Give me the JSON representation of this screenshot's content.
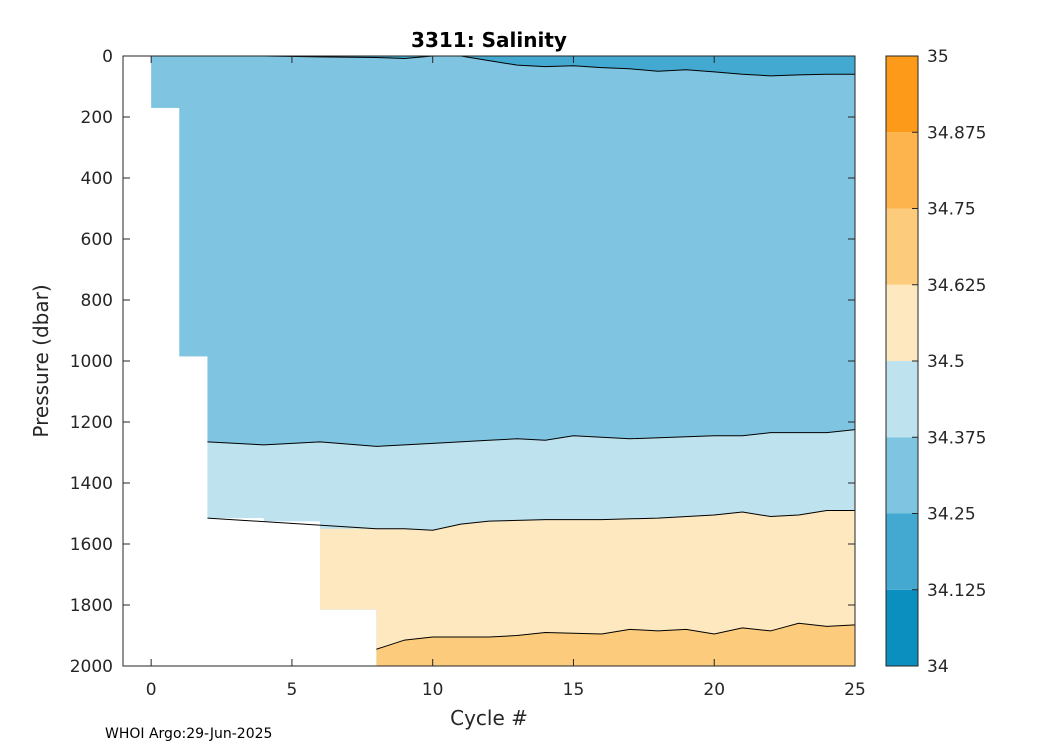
{
  "chart_data": {
    "type": "contour",
    "title": "3311:  Salinity",
    "xlabel": "Cycle #",
    "ylabel": "Pressure (dbar)",
    "xlim": [
      -1,
      25
    ],
    "ylim": [
      2000,
      0
    ],
    "xticks": [
      0,
      5,
      10,
      15,
      20,
      25
    ],
    "yticks": [
      0,
      200,
      400,
      600,
      800,
      1000,
      1200,
      1400,
      1600,
      1800,
      2000
    ],
    "colorbar": {
      "ticks": [
        "34",
        "34.125",
        "34.25",
        "34.375",
        "34.5",
        "34.625",
        "34.75",
        "34.875",
        "35"
      ],
      "colors": [
        "#0b8fbf",
        "#43a9d0",
        "#7fc4e0",
        "#bee2ee",
        "#fde8c0",
        "#fccc7c",
        "#fdb44d",
        "#fe9a19"
      ]
    },
    "profile_max_depth": [
      {
        "cycle": 0,
        "pressure": 170
      },
      {
        "cycle": 1,
        "pressure": 985
      },
      {
        "cycle": 2,
        "pressure": 1515
      },
      {
        "cycle": 4,
        "pressure": 1525
      },
      {
        "cycle": 6,
        "pressure": 1815
      },
      {
        "cycle": 8,
        "pressure": 2000
      },
      {
        "cycle": 25,
        "pressure": 2000
      }
    ],
    "contours": [
      {
        "level": "34.25",
        "points": [
          [
            0,
            0
          ],
          [
            4,
            0
          ],
          [
            6,
            3
          ],
          [
            8,
            5
          ],
          [
            9,
            8
          ],
          [
            10,
            0
          ],
          [
            11,
            0
          ],
          [
            12,
            15
          ],
          [
            13,
            30
          ],
          [
            14,
            35
          ],
          [
            15,
            32
          ],
          [
            16,
            38
          ],
          [
            17,
            42
          ],
          [
            18,
            50
          ],
          [
            19,
            45
          ],
          [
            20,
            52
          ],
          [
            21,
            60
          ],
          [
            22,
            65
          ],
          [
            23,
            62
          ],
          [
            24,
            60
          ],
          [
            25,
            60
          ]
        ]
      },
      {
        "level": "34.375",
        "points": [
          [
            2,
            1265
          ],
          [
            4,
            1275
          ],
          [
            6,
            1265
          ],
          [
            8,
            1280
          ],
          [
            10,
            1270
          ],
          [
            12,
            1260
          ],
          [
            13,
            1255
          ],
          [
            14,
            1260
          ],
          [
            15,
            1245
          ],
          [
            17,
            1255
          ],
          [
            20,
            1245
          ],
          [
            21,
            1245
          ],
          [
            22,
            1235
          ],
          [
            24,
            1235
          ],
          [
            25,
            1225
          ]
        ]
      },
      {
        "level": "34.5",
        "points": [
          [
            2,
            1515
          ],
          [
            8,
            1550
          ],
          [
            9,
            1550
          ],
          [
            10,
            1555
          ],
          [
            11,
            1535
          ],
          [
            12,
            1525
          ],
          [
            14,
            1520
          ],
          [
            16,
            1520
          ],
          [
            18,
            1515
          ],
          [
            20,
            1505
          ],
          [
            21,
            1495
          ],
          [
            22,
            1510
          ],
          [
            23,
            1505
          ],
          [
            24,
            1490
          ],
          [
            25,
            1490
          ]
        ]
      },
      {
        "level": "34.625",
        "points": [
          [
            8,
            1945
          ],
          [
            9,
            1915
          ],
          [
            10,
            1905
          ],
          [
            12,
            1905
          ],
          [
            13,
            1900
          ],
          [
            14,
            1890
          ],
          [
            16,
            1895
          ],
          [
            17,
            1880
          ],
          [
            18,
            1885
          ],
          [
            19,
            1880
          ],
          [
            20,
            1895
          ],
          [
            21,
            1875
          ],
          [
            22,
            1885
          ],
          [
            23,
            1860
          ],
          [
            24,
            1870
          ],
          [
            25,
            1865
          ]
        ]
      }
    ],
    "footer": "WHOI Argo:29-Jun-2025"
  }
}
